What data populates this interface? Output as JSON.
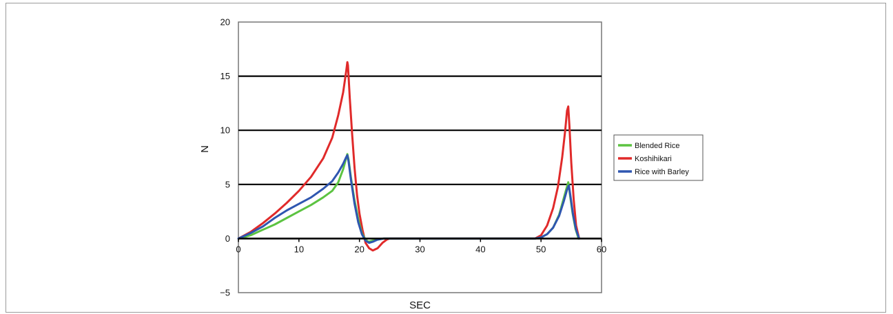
{
  "chart_data": {
    "type": "line",
    "title": "",
    "xlabel": "SEC",
    "ylabel": "N",
    "xlim": [
      0,
      60
    ],
    "ylim": [
      -5,
      20
    ],
    "xticks": [
      0,
      10,
      20,
      30,
      40,
      50,
      60
    ],
    "yticks": [
      -5,
      0,
      5,
      10,
      15,
      20
    ],
    "grid": "horizontal",
    "legend": "right",
    "series": [
      {
        "name": "Blended Rice",
        "color": "#5cc341",
        "x": [
          0,
          2,
          4,
          6,
          8,
          10,
          12,
          14,
          15.5,
          16.5,
          17.3,
          17.8,
          18.0,
          18.2,
          18.6,
          19.2,
          19.8,
          20.4,
          21.0,
          21.5,
          22.2,
          23,
          24,
          26,
          30,
          40,
          49,
          50,
          51,
          52,
          53,
          53.8,
          54.3,
          54.5,
          54.8,
          55.2,
          55.7,
          56.2
        ],
        "y": [
          0,
          0.3,
          0.8,
          1.3,
          1.9,
          2.5,
          3.1,
          3.8,
          4.4,
          5.2,
          6.4,
          7.4,
          7.8,
          7.3,
          5.6,
          3.5,
          1.8,
          0.5,
          -0.1,
          -0.3,
          -0.2,
          -0.1,
          0,
          0,
          0,
          0,
          0,
          0.1,
          0.4,
          1.0,
          2.2,
          3.8,
          4.8,
          5.2,
          4.0,
          2.4,
          0.9,
          0
        ]
      },
      {
        "name": "Koshihikari",
        "color": "#e02a2a",
        "x": [
          0,
          2,
          4,
          6,
          8,
          10,
          12,
          14,
          15.5,
          16.5,
          17.3,
          17.8,
          18.0,
          18.1,
          18.4,
          18.8,
          19.2,
          19.6,
          20.0,
          20.5,
          21.0,
          21.6,
          22.2,
          23,
          23.8,
          24.5,
          25,
          30,
          40,
          49,
          50,
          51,
          52,
          52.8,
          53.5,
          54.0,
          54.3,
          54.5,
          54.7,
          55.0,
          55.4,
          55.8,
          56.3
        ],
        "y": [
          0,
          0.6,
          1.4,
          2.3,
          3.3,
          4.4,
          5.7,
          7.4,
          9.3,
          11.4,
          13.5,
          15.4,
          16.3,
          16.0,
          13.0,
          9.6,
          6.5,
          4.0,
          2.3,
          0.8,
          -0.4,
          -0.9,
          -1.1,
          -0.9,
          -0.4,
          -0.1,
          0,
          0,
          0,
          0,
          0.3,
          1.2,
          2.8,
          4.8,
          7.5,
          10.0,
          11.8,
          12.2,
          10.4,
          7.0,
          3.6,
          1.2,
          0
        ]
      },
      {
        "name": "Rice with Barley",
        "color": "#2f56b0",
        "x": [
          0,
          2,
          4,
          6,
          8,
          10,
          12,
          14,
          15.5,
          16.5,
          17.3,
          17.8,
          18.0,
          18.2,
          18.6,
          19.2,
          19.8,
          20.4,
          21.0,
          21.6,
          22.2,
          23,
          24,
          26,
          30,
          40,
          49,
          50,
          51,
          52,
          53,
          53.8,
          54.3,
          54.6,
          54.9,
          55.3,
          55.8,
          56.3
        ],
        "y": [
          0,
          0.5,
          1.1,
          1.9,
          2.6,
          3.2,
          3.8,
          4.6,
          5.3,
          6.1,
          6.9,
          7.5,
          7.7,
          7.1,
          5.4,
          3.2,
          1.5,
          0.4,
          -0.2,
          -0.4,
          -0.3,
          -0.1,
          0,
          0,
          0,
          0,
          0,
          0.1,
          0.4,
          1.0,
          2.1,
          3.5,
          4.5,
          4.9,
          3.8,
          2.2,
          0.8,
          0
        ]
      }
    ]
  }
}
